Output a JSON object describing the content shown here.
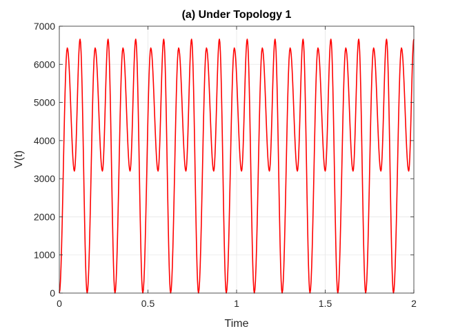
{
  "chart_data": {
    "type": "line",
    "title": "(a) Under Topology 1",
    "xlabel": "Time",
    "ylabel": "V(t)",
    "xlim": [
      0,
      2
    ],
    "ylim": [
      0,
      7000
    ],
    "xticks": [
      0,
      0.5,
      1,
      1.5,
      2
    ],
    "xtick_labels": [
      "0",
      "0.5",
      "1",
      "1.5",
      "2"
    ],
    "yticks": [
      0,
      1000,
      2000,
      3000,
      4000,
      5000,
      6000,
      7000
    ],
    "ytick_labels": [
      "0",
      "1000",
      "2000",
      "3000",
      "4000",
      "5000",
      "6000",
      "7000"
    ],
    "grid": true,
    "series": [
      {
        "color": "#ff0000",
        "x": [
          0,
          0.045,
          0.085,
          0.117,
          0.157,
          0.202,
          0.243,
          0.275,
          0.314,
          0.359,
          0.399,
          0.431,
          0.471,
          0.516,
          0.557,
          0.589,
          0.628,
          0.673,
          0.714,
          0.746,
          0.785,
          0.83,
          0.871,
          0.903,
          0.942,
          0.987,
          1.028,
          1.06,
          1.1,
          1.145,
          1.185,
          1.217,
          1.257,
          1.302,
          1.343,
          1.375,
          1.414,
          1.459,
          1.5,
          1.532,
          1.571,
          1.616,
          1.657,
          1.689,
          1.728,
          1.773,
          1.814,
          1.846,
          1.885,
          1.93,
          1.971,
          2.0
        ],
        "values": [
          0,
          6430,
          3200,
          6660,
          0,
          6430,
          3200,
          6660,
          0,
          6430,
          3200,
          6660,
          0,
          6430,
          3200,
          6660,
          0,
          6430,
          3200,
          6660,
          0,
          6430,
          3200,
          6660,
          0,
          6430,
          3200,
          6660,
          0,
          6430,
          3200,
          6660,
          0,
          6430,
          3200,
          6660,
          0,
          6430,
          3200,
          6660,
          0,
          6430,
          3200,
          6660,
          0,
          6430,
          3200,
          6660,
          0,
          6430,
          3200,
          6660
        ]
      }
    ]
  }
}
